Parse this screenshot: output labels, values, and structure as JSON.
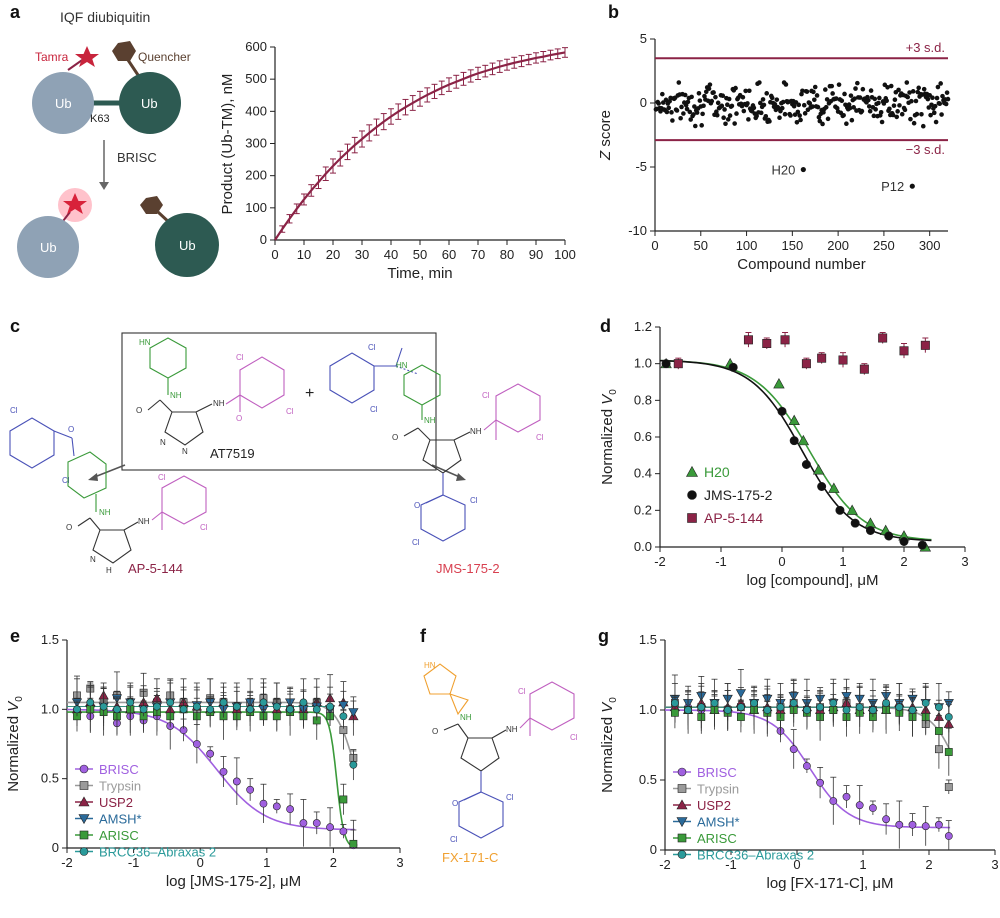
{
  "figure": {
    "panel_labels": [
      "a",
      "b",
      "c",
      "d",
      "e",
      "f",
      "g"
    ],
    "colors": {
      "maroon": "#8b2346",
      "ub_light": "#8fa2b5",
      "ub_dark": "#2d5a52",
      "star": "#c8243c",
      "quencher": "#5a4030",
      "green": "#3a9a3a",
      "blue": "#4a52b8",
      "violet": "#c060c0",
      "orange": "#f0a030",
      "fit_purple": "#a060e0",
      "black": "#111111"
    }
  },
  "schematic": {
    "title": "IQF diubiquitin",
    "tamra": "Tamra",
    "quencher": "Quencher",
    "ub": "Ub",
    "linkage": "K63",
    "enzyme": "BRISC"
  },
  "chemistry": {
    "at7519": "AT7519",
    "plus": "+",
    "ap": "AP-5-144",
    "jms": "JMS-175-2",
    "fx": "FX-171-C",
    "atoms": {
      "hn": "HN",
      "nh": "NH",
      "n": "N",
      "h": "H",
      "o": "O",
      "cl": "Cl"
    }
  },
  "chart_data": [
    {
      "id": "a",
      "type": "line",
      "xlabel": "Time, min",
      "ylabel": "Product (Ub-TM), nM",
      "xlim": [
        0,
        100
      ],
      "ylim": [
        0,
        600
      ],
      "xticks": [
        0,
        10,
        20,
        30,
        40,
        50,
        60,
        70,
        80,
        90,
        100
      ],
      "yticks": [
        0,
        100,
        200,
        300,
        400,
        500,
        600
      ],
      "x": [
        0,
        2.5,
        5,
        7.5,
        10,
        12.5,
        15,
        17.5,
        20,
        22.5,
        25,
        27.5,
        30,
        32.5,
        35,
        37.5,
        40,
        42.5,
        45,
        47.5,
        50,
        52.5,
        55,
        57.5,
        60,
        62.5,
        65,
        67.5,
        70,
        72.5,
        75,
        77.5,
        80,
        82.5,
        85,
        87.5,
        90,
        92.5,
        95,
        97.5,
        100
      ],
      "y": [
        0,
        34,
        66,
        97,
        126,
        154,
        180,
        206,
        230,
        253,
        274,
        295,
        314,
        333,
        351,
        368,
        384,
        399,
        413,
        426,
        439,
        451,
        462,
        473,
        483,
        492,
        501,
        510,
        518,
        525,
        532,
        539,
        545,
        551,
        556,
        561,
        566,
        570,
        575,
        579,
        583
      ],
      "err": [
        0,
        10,
        13,
        15,
        17,
        18,
        20,
        21,
        22,
        23,
        24,
        24,
        25,
        25,
        25,
        25,
        24,
        24,
        24,
        23,
        23,
        22,
        22,
        21,
        21,
        20,
        20,
        19,
        19,
        18,
        18,
        18,
        17,
        17,
        17,
        16,
        16,
        16,
        15,
        15,
        15
      ]
    },
    {
      "id": "b",
      "type": "scatter",
      "xlabel": "Compound number",
      "ylabel": "Z score",
      "xlim": [
        0,
        320
      ],
      "ylim": [
        -10,
        5
      ],
      "xticks": [
        0,
        50,
        100,
        150,
        200,
        250,
        300
      ],
      "yticks": [
        -10,
        -5,
        0,
        5
      ],
      "thresholds": [
        {
          "value": 3.5,
          "label": "+3 s.d."
        },
        {
          "value": -2.9,
          "label": "−3 s.d."
        }
      ],
      "hits": [
        {
          "label": "H20",
          "x": 162,
          "y": -5.2
        },
        {
          "label": "P12",
          "x": 281,
          "y": -6.5
        }
      ],
      "n_points": 320
    },
    {
      "id": "d",
      "type": "scatter",
      "xlabel": "log [compound], μM",
      "ylabel": "Normalized V0",
      "xlim": [
        -2,
        3
      ],
      "ylim": [
        0,
        1.2
      ],
      "xticks": [
        -2,
        -1,
        0,
        1,
        2,
        3
      ],
      "yticks": [
        0,
        0.2,
        0.4,
        0.6,
        0.8,
        1.0,
        1.2
      ],
      "series": [
        {
          "name": "H20",
          "color": "#3a9a3a",
          "marker": "triangle",
          "ic50": 0.45,
          "x": [
            -1.9,
            -0.85,
            -0.05,
            0.2,
            0.35,
            0.6,
            0.85,
            1.15,
            1.45,
            1.7,
            2.0,
            2.35
          ],
          "y": [
            1.0,
            1.0,
            0.89,
            0.69,
            0.58,
            0.42,
            0.32,
            0.2,
            0.13,
            0.09,
            0.06,
            0.0
          ]
        },
        {
          "name": "JMS-175-2",
          "color": "#111111",
          "marker": "circle",
          "ic50": 0.35,
          "x": [
            -1.9,
            -0.8,
            0.0,
            0.2,
            0.4,
            0.65,
            0.95,
            1.2,
            1.45,
            1.75,
            2.0,
            2.3
          ],
          "y": [
            1.0,
            0.98,
            0.74,
            0.58,
            0.45,
            0.33,
            0.2,
            0.13,
            0.09,
            0.06,
            0.03,
            0.01
          ]
        },
        {
          "name": "AP-5-144",
          "color": "#8b2346",
          "marker": "square",
          "x": [
            -1.7,
            -0.55,
            -0.25,
            0.05,
            0.4,
            0.65,
            1.0,
            1.35,
            1.65,
            2.0,
            2.35
          ],
          "y": [
            1.0,
            1.13,
            1.11,
            1.13,
            1.0,
            1.03,
            1.02,
            0.97,
            1.14,
            1.07,
            1.1
          ],
          "err": [
            0.03,
            0.04,
            0.03,
            0.04,
            0.03,
            0.03,
            0.04,
            0.03,
            0.03,
            0.04,
            0.04
          ]
        }
      ]
    },
    {
      "id": "e",
      "type": "scatter",
      "xlabel": "log [JMS-175-2], μM",
      "ylabel": "Normalized V0",
      "xlim": [
        -2,
        3
      ],
      "ylim": [
        0,
        1.5
      ],
      "xticks": [
        -2,
        -1,
        0,
        1,
        2,
        3
      ],
      "yticks": [
        0,
        0.5,
        1.0,
        1.5
      ],
      "x": [
        -1.85,
        -1.65,
        -1.45,
        -1.25,
        -1.05,
        -0.85,
        -0.65,
        -0.45,
        -0.25,
        -0.05,
        0.15,
        0.35,
        0.55,
        0.75,
        0.95,
        1.15,
        1.35,
        1.55,
        1.75,
        1.95,
        2.15,
        2.3
      ],
      "series": [
        {
          "name": "BRISC",
          "color": "#a060e0",
          "marker": "circle",
          "fit_ic50": 0.25,
          "fit_top": 1.0,
          "fit_bottom": 0.13,
          "y": [
            1.0,
            0.95,
            0.98,
            0.9,
            0.95,
            0.92,
            0.95,
            0.88,
            0.85,
            0.75,
            0.68,
            0.55,
            0.48,
            0.42,
            0.32,
            0.3,
            0.28,
            0.18,
            0.18,
            0.15,
            0.12,
            0.02
          ]
        },
        {
          "name": "Trypsin",
          "color": "#9a9a9a",
          "marker": "square",
          "y": [
            1.1,
            1.15,
            1.05,
            1.1,
            1.0,
            1.12,
            1.05,
            1.1,
            1.05,
            1.0,
            1.08,
            1.05,
            1.02,
            1.05,
            1.08,
            1.05,
            1.0,
            1.02,
            1.05,
            1.0,
            0.85,
            0.65
          ]
        },
        {
          "name": "USP2",
          "color": "#8b2346",
          "marker": "triangle",
          "y": [
            1.0,
            1.05,
            1.1,
            1.02,
            1.0,
            1.05,
            1.08,
            1.0,
            1.05,
            1.02,
            1.0,
            1.05,
            1.0,
            1.02,
            1.05,
            1.0,
            1.02,
            1.0,
            1.05,
            1.08,
            1.05,
            0.95
          ]
        },
        {
          "name": "AMSH*",
          "color": "#2a6a9a",
          "marker": "triangle-down",
          "y": [
            1.05,
            1.0,
            1.02,
            1.08,
            1.05,
            1.0,
            1.02,
            1.05,
            1.0,
            1.03,
            1.05,
            1.0,
            1.02,
            1.05,
            1.0,
            1.02,
            1.05,
            1.0,
            1.02,
            1.0,
            1.03,
            0.98
          ]
        },
        {
          "name": "ARISC",
          "color": "#3a9a3a",
          "marker": "square",
          "y": [
            0.95,
            1.0,
            0.98,
            0.95,
            1.0,
            0.95,
            0.98,
            0.95,
            1.0,
            0.95,
            0.98,
            0.95,
            0.95,
            0.98,
            0.95,
            0.95,
            0.98,
            0.95,
            0.92,
            0.95,
            0.35,
            0.03
          ]
        },
        {
          "name": "BRCC36–Abraxas 2",
          "color": "#2a9a9a",
          "marker": "circle",
          "y": [
            1.0,
            1.05,
            1.02,
            1.0,
            1.05,
            1.0,
            1.02,
            1.05,
            1.0,
            1.02,
            1.0,
            1.05,
            1.02,
            1.0,
            1.05,
            1.02,
            1.0,
            1.05,
            1.0,
            1.02,
            0.95,
            0.6
          ]
        }
      ],
      "fit_lines": [
        {
          "color": "#a060e0",
          "top": 1.0,
          "bottom": 0.13,
          "ic50": 0.25,
          "hill": 1.2
        },
        {
          "color": "#3a9a3a",
          "top": 0.98,
          "bottom": 0.0,
          "ic50": 2.05,
          "hill": 8
        },
        {
          "color": "#9a9a9a",
          "top": 1.05,
          "bottom": 0.0,
          "ic50": 2.35,
          "hill": 3
        }
      ]
    },
    {
      "id": "g",
      "type": "scatter",
      "xlabel": "log [FX-171-C], μM",
      "ylabel": "Normalized V0",
      "xlim": [
        -2,
        3
      ],
      "ylim": [
        0,
        1.5
      ],
      "xticks": [
        -2,
        -1,
        0,
        1,
        2,
        3
      ],
      "yticks": [
        0,
        0.5,
        1.0,
        1.5
      ],
      "x": [
        -1.85,
        -1.65,
        -1.45,
        -1.25,
        -1.05,
        -0.85,
        -0.65,
        -0.45,
        -0.25,
        -0.05,
        0.15,
        0.35,
        0.55,
        0.75,
        0.95,
        1.15,
        1.35,
        1.55,
        1.75,
        1.95,
        2.15,
        2.3
      ],
      "series": [
        {
          "name": "BRISC",
          "color": "#a060e0",
          "marker": "circle",
          "y": [
            1.0,
            1.02,
            1.0,
            1.05,
            1.0,
            1.02,
            1.0,
            0.98,
            0.85,
            0.72,
            0.6,
            0.48,
            0.35,
            0.38,
            0.32,
            0.3,
            0.22,
            0.18,
            0.18,
            0.17,
            0.18,
            0.1
          ]
        },
        {
          "name": "Trypsin",
          "color": "#9a9a9a",
          "marker": "square",
          "y": [
            1.05,
            1.0,
            1.02,
            1.05,
            1.0,
            1.02,
            1.05,
            1.0,
            1.02,
            1.05,
            1.0,
            1.02,
            1.0,
            1.05,
            1.02,
            1.0,
            1.02,
            1.0,
            0.98,
            0.9,
            0.72,
            0.45
          ]
        },
        {
          "name": "USP2",
          "color": "#8b2346",
          "marker": "triangle",
          "y": [
            1.02,
            1.0,
            1.05,
            1.0,
            1.02,
            1.05,
            1.0,
            1.02,
            1.0,
            1.05,
            1.02,
            1.0,
            1.02,
            1.05,
            1.0,
            1.02,
            1.0,
            1.05,
            1.02,
            1.0,
            0.95,
            0.9
          ]
        },
        {
          "name": "AMSH*",
          "color": "#2a6a9a",
          "marker": "triangle-down",
          "y": [
            1.08,
            1.05,
            1.1,
            1.05,
            1.08,
            1.12,
            1.05,
            1.08,
            1.05,
            1.1,
            1.05,
            1.08,
            1.05,
            1.1,
            1.08,
            1.05,
            1.1,
            1.05,
            1.08,
            1.05,
            1.02,
            1.05
          ]
        },
        {
          "name": "ARISC",
          "color": "#3a9a3a",
          "marker": "square",
          "y": [
            0.98,
            1.0,
            0.95,
            1.0,
            0.98,
            0.95,
            1.0,
            0.98,
            0.95,
            1.0,
            0.98,
            0.95,
            1.0,
            0.95,
            0.98,
            0.95,
            1.0,
            0.98,
            0.95,
            0.95,
            0.85,
            0.7
          ]
        },
        {
          "name": "BRCC36–Abraxas 2",
          "color": "#2a9a9a",
          "marker": "circle",
          "y": [
            1.05,
            1.0,
            1.02,
            1.05,
            1.0,
            1.02,
            1.05,
            1.0,
            1.02,
            1.05,
            1.0,
            1.02,
            1.05,
            1.0,
            1.02,
            1.0,
            1.05,
            1.02,
            1.0,
            1.05,
            1.02,
            0.95
          ]
        }
      ],
      "fit_lines": [
        {
          "color": "#a060e0",
          "top": 1.0,
          "bottom": 0.16,
          "ic50": 0.2,
          "hill": 1.5
        },
        {
          "color": "#9a9a9a",
          "top": 1.02,
          "bottom": 0.0,
          "ic50": 2.5,
          "hill": 2
        }
      ]
    }
  ]
}
